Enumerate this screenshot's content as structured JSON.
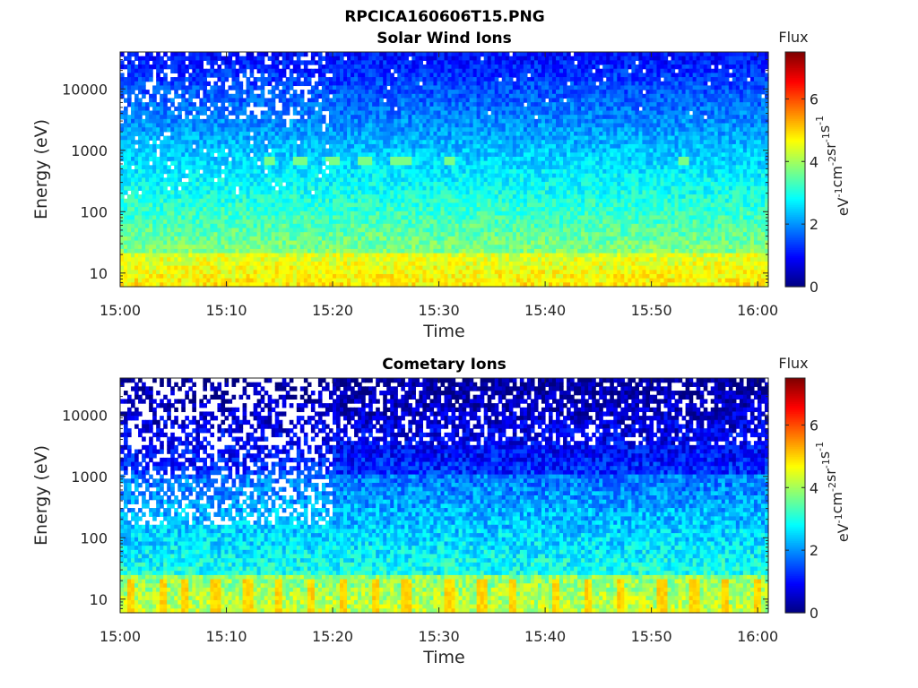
{
  "figure": {
    "title": "RPCICA160606T15.PNG"
  },
  "chart_data": [
    {
      "type": "heatmap",
      "title": "Solar Wind Ions",
      "xlabel": "Time",
      "ylabel": "Energy (eV)",
      "x_range": [
        "15:00",
        "16:01"
      ],
      "x_ticks": [
        "15:00",
        "15:10",
        "15:20",
        "15:30",
        "15:40",
        "15:50",
        "16:00"
      ],
      "y_scale": "log",
      "y_range": [
        6,
        40000
      ],
      "y_ticks": [
        "10",
        "100",
        "1000",
        "10000"
      ],
      "y_tick_values": [
        10,
        100,
        1000,
        10000
      ],
      "colorbar": {
        "label": "Flux",
        "unit_parts": [
          "eV",
          "-1",
          "cm",
          "-2",
          "sr",
          "-1",
          "s",
          "-1"
        ],
        "range": [
          0,
          7.5
        ],
        "ticks": [
          "0",
          "2",
          "4",
          "6"
        ],
        "tick_values": [
          0,
          2,
          4,
          6
        ],
        "colormap": "jet"
      },
      "description_values": {
        "low_energy_band_flux": 3.5,
        "mid_energy_flux": 2.0,
        "high_energy_flux": 1.0,
        "bright_line_energy_eV": 700,
        "bright_line_times": [
          "15:14",
          "15:17",
          "15:20",
          "15:23",
          "15:26",
          "15:27",
          "15:31",
          "15:53"
        ]
      }
    },
    {
      "type": "heatmap",
      "title": "Cometary Ions",
      "xlabel": "Time",
      "ylabel": "Energy (eV)",
      "x_range": [
        "15:00",
        "16:01"
      ],
      "x_ticks": [
        "15:00",
        "15:10",
        "15:20",
        "15:30",
        "15:40",
        "15:50",
        "16:00"
      ],
      "y_scale": "log",
      "y_range": [
        6,
        40000
      ],
      "y_ticks": [
        "10",
        "100",
        "1000",
        "10000"
      ],
      "y_tick_values": [
        10,
        100,
        1000,
        10000
      ],
      "colorbar": {
        "label": "Flux",
        "unit_parts": [
          "eV",
          "-1",
          "cm",
          "-2",
          "sr",
          "-1",
          "s",
          "-1"
        ],
        "range": [
          0,
          7.5
        ],
        "ticks": [
          "0",
          "2",
          "4",
          "6"
        ],
        "tick_values": [
          0,
          2,
          4,
          6
        ],
        "colormap": "jet"
      },
      "description_values": {
        "low_energy_band_flux": 4.0,
        "mid_energy_flux": 1.5,
        "high_energy_flux": 0.5,
        "bright_stripe_times": [
          "15:01",
          "15:04",
          "15:06",
          "15:09",
          "15:12",
          "15:15",
          "15:18",
          "15:21",
          "15:24",
          "15:27",
          "15:31",
          "15:34",
          "15:37",
          "15:41",
          "15:44",
          "15:47",
          "15:51",
          "15:54",
          "15:57",
          "16:00"
        ]
      }
    }
  ]
}
